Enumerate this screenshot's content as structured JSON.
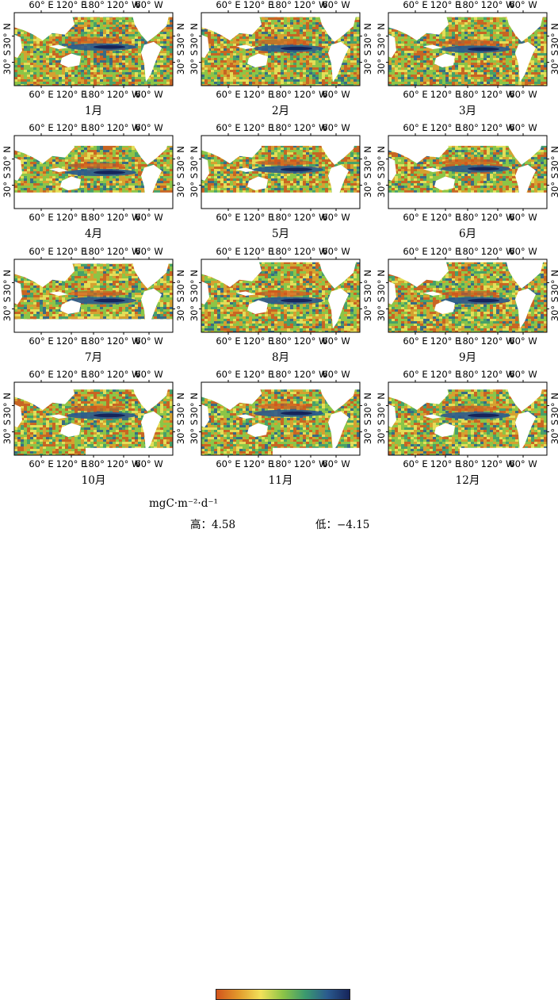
{
  "figure": {
    "panels": [
      {
        "label": "1月",
        "mask": "none",
        "bands": [
          0.46,
          0.48
        ]
      },
      {
        "label": "2月",
        "mask": "none",
        "bands": [
          0.48,
          0.5
        ]
      },
      {
        "label": "3月",
        "mask": "none",
        "bands": [
          0.49,
          0.51
        ]
      },
      {
        "label": "4月",
        "mask": "north",
        "bands": [
          0.49,
          0.52
        ]
      },
      {
        "label": "5月",
        "mask": "north",
        "bands": [
          0.45,
          0.48
        ]
      },
      {
        "label": "6月",
        "mask": "north",
        "bands": [
          0.44,
          0.47
        ]
      },
      {
        "label": "7月",
        "mask": "north_small",
        "bands": [
          0.55,
          0.58
        ]
      },
      {
        "label": "8月",
        "mask": "none_south",
        "bands": [
          0.55,
          0.58
        ]
      },
      {
        "label": "9月",
        "mask": "none_south",
        "bands": [
          0.55,
          0.58
        ]
      },
      {
        "label": "10月",
        "mask": "none_south_arctic",
        "bands": [
          0.44,
          0.47
        ]
      },
      {
        "label": "11月",
        "mask": "none_south_arctic",
        "bands": [
          0.41,
          0.44
        ]
      },
      {
        "label": "12月",
        "mask": "none_south_arctic",
        "bands": [
          0.44,
          0.47
        ]
      }
    ],
    "x_ticks": [
      "60° E",
      "120° E",
      "180°",
      "120° W",
      "60° W"
    ],
    "y_ticks": [
      "30° N",
      "30° S"
    ]
  },
  "legend": {
    "unit": "mgC·m⁻²·d⁻¹",
    "high_label": "高：4.58",
    "low_label": "低：−4.15",
    "high_value": 4.58,
    "low_value": -4.15,
    "colors": [
      "#d2541c",
      "#e29a2c",
      "#f2e25a",
      "#8cc447",
      "#3b9a6e",
      "#2a5a8e",
      "#16245a"
    ]
  }
}
